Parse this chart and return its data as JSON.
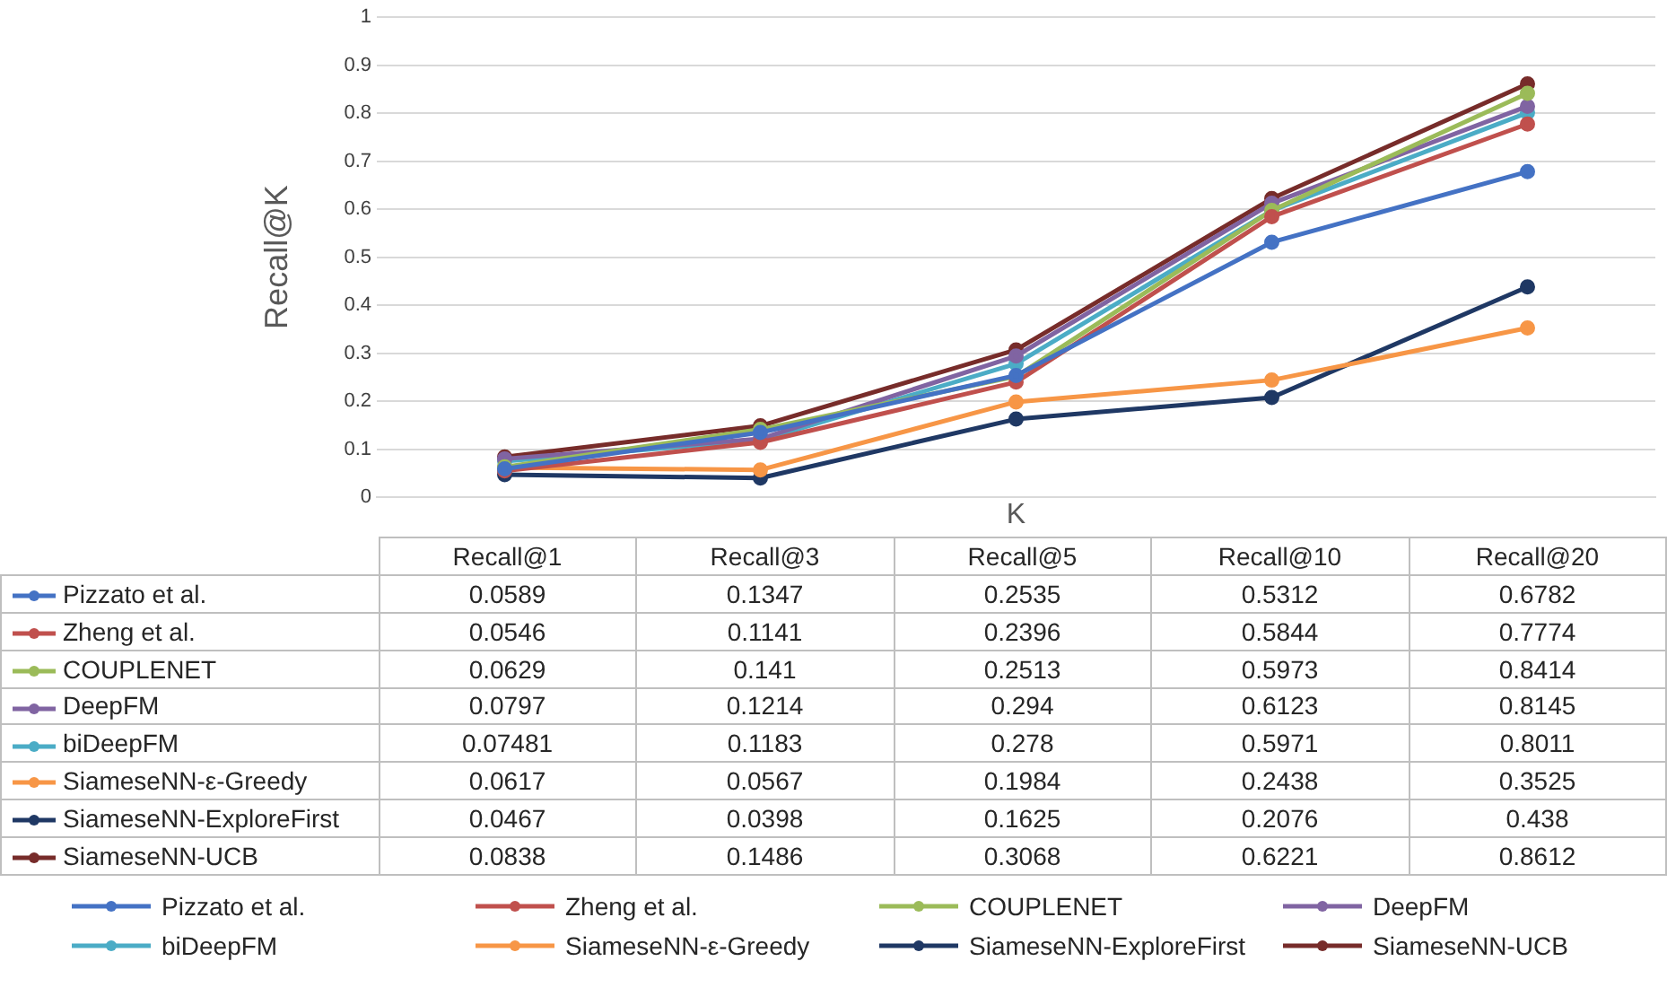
{
  "chart_data": {
    "type": "line",
    "xlabel": "K",
    "ylabel": "Recall@K",
    "categories": [
      "Recall@1",
      "Recall@3",
      "Recall@5",
      "Recall@10",
      "Recall@20"
    ],
    "series": [
      {
        "name": "Pizzato et al.",
        "color": "#4472c4",
        "values": [
          0.0589,
          0.1347,
          0.2535,
          0.5312,
          0.6782
        ]
      },
      {
        "name": "Zheng et al.",
        "color": "#c0504d",
        "values": [
          0.0546,
          0.1141,
          0.2396,
          0.5844,
          0.7774
        ]
      },
      {
        "name": "COUPLENET",
        "color": "#9bbb59",
        "values": [
          0.0629,
          0.141,
          0.2513,
          0.5973,
          0.8414
        ]
      },
      {
        "name": "DeepFM",
        "color": "#8064a2",
        "values": [
          0.0797,
          0.1214,
          0.294,
          0.6123,
          0.8145
        ]
      },
      {
        "name": "biDeepFM",
        "color": "#4bacc6",
        "values": [
          0.07481,
          0.1183,
          0.278,
          0.5971,
          0.8011
        ]
      },
      {
        "name": "SiameseNN-ε-Greedy",
        "color": "#f79646",
        "values": [
          0.0617,
          0.0567,
          0.1984,
          0.2438,
          0.3525
        ]
      },
      {
        "name": "SiameseNN-ExploreFirst",
        "color": "#1f3864",
        "values": [
          0.0467,
          0.0398,
          0.1625,
          0.2076,
          0.438
        ]
      },
      {
        "name": "SiameseNN-UCB",
        "color": "#772c2a",
        "values": [
          0.0838,
          0.1486,
          0.3068,
          0.6221,
          0.8612
        ]
      }
    ],
    "ylim": [
      0,
      1
    ],
    "yticks": [
      0,
      0.1,
      0.2,
      0.3,
      0.4,
      0.5,
      0.6,
      0.7,
      0.8,
      0.9,
      1
    ],
    "grid": "y",
    "legend": "bottom",
    "marker": "circle",
    "data_labels": true
  }
}
